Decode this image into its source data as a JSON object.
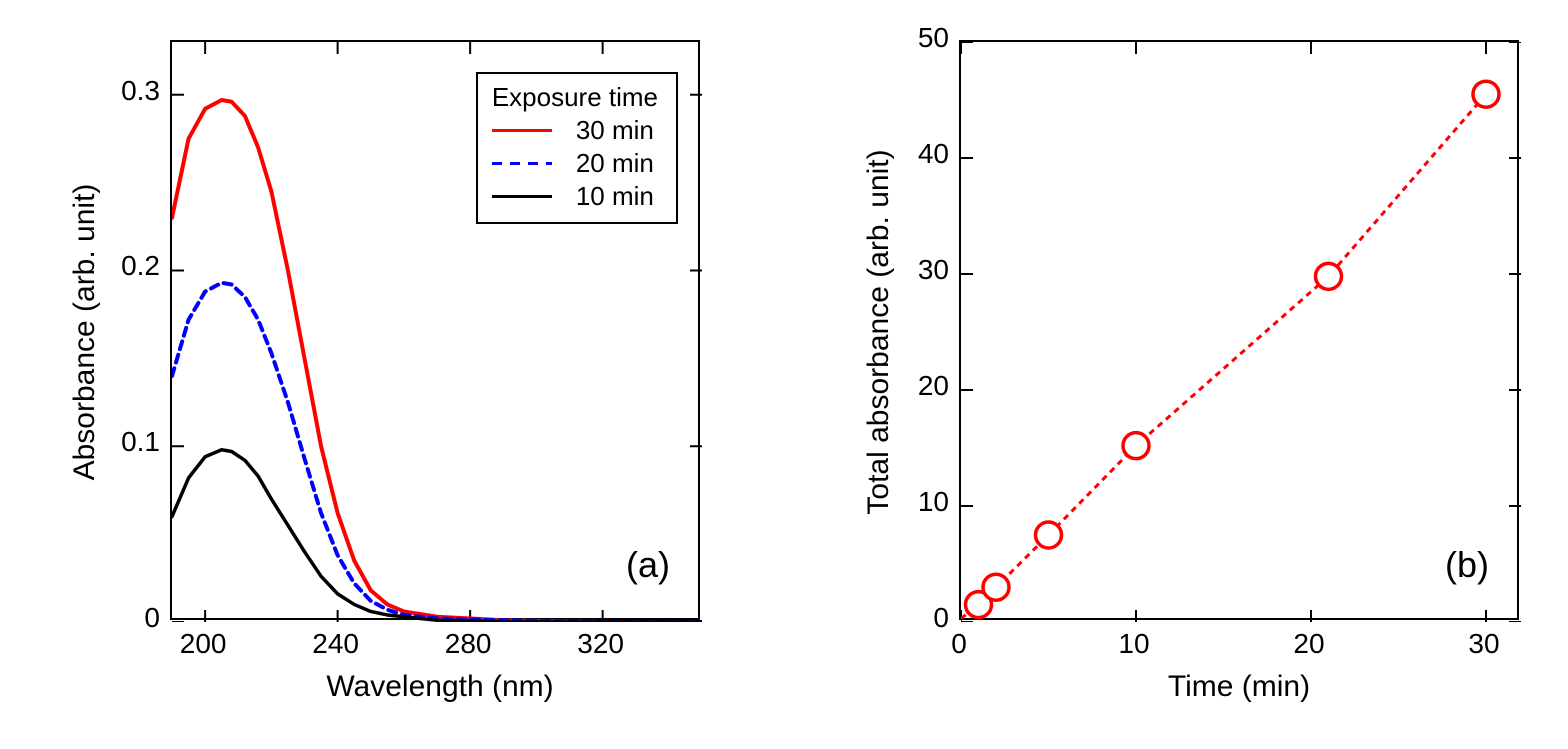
{
  "panel_a": {
    "type": "line",
    "panel_label": "(a)",
    "xlabel": "Wavelength (nm)",
    "ylabel": "Absorbance (arb. unit)",
    "label_fontsize": 30,
    "tick_fontsize": 28,
    "xlim": [
      190,
      350
    ],
    "ylim": [
      0,
      0.33
    ],
    "xticks": [
      200,
      240,
      280,
      320
    ],
    "yticks": [
      0,
      0.1,
      0.2,
      0.3
    ],
    "background_color": "#ffffff",
    "border_color": "#000000",
    "legend": {
      "title": "Exposure time",
      "entries": [
        {
          "label": "30 min",
          "color": "#ff0000",
          "dash": "solid"
        },
        {
          "label": "20 min",
          "color": "#0000ff",
          "dash": "dashed"
        },
        {
          "label": "10 min",
          "color": "#000000",
          "dash": "solid"
        }
      ]
    },
    "series": [
      {
        "name": "30min",
        "color": "#ff0000",
        "dash": "none",
        "width": 4,
        "x": [
          190,
          195,
          200,
          205,
          208,
          212,
          216,
          220,
          225,
          230,
          235,
          240,
          245,
          250,
          255,
          260,
          270,
          290,
          320,
          350
        ],
        "y": [
          0.23,
          0.275,
          0.292,
          0.297,
          0.296,
          0.288,
          0.27,
          0.245,
          0.2,
          0.15,
          0.1,
          0.062,
          0.035,
          0.018,
          0.01,
          0.006,
          0.003,
          0.001,
          0.0,
          0.0
        ]
      },
      {
        "name": "20min",
        "color": "#0000ff",
        "dash": "8,6",
        "width": 4,
        "x": [
          190,
          195,
          200,
          205,
          208,
          212,
          216,
          220,
          225,
          230,
          235,
          240,
          245,
          250,
          255,
          260,
          270,
          290,
          320,
          350
        ],
        "y": [
          0.14,
          0.172,
          0.188,
          0.193,
          0.192,
          0.185,
          0.172,
          0.153,
          0.125,
          0.093,
          0.062,
          0.038,
          0.022,
          0.012,
          0.007,
          0.004,
          0.002,
          0.001,
          0.0,
          0.0
        ]
      },
      {
        "name": "10min",
        "color": "#000000",
        "dash": "none",
        "width": 3.5,
        "x": [
          190,
          195,
          200,
          205,
          208,
          212,
          216,
          220,
          225,
          230,
          235,
          240,
          245,
          250,
          255,
          260,
          270,
          290,
          320,
          350
        ],
        "y": [
          0.06,
          0.082,
          0.094,
          0.098,
          0.097,
          0.092,
          0.083,
          0.07,
          0.055,
          0.04,
          0.026,
          0.016,
          0.01,
          0.006,
          0.004,
          0.003,
          0.001,
          0.0,
          0.0,
          0.0
        ]
      }
    ]
  },
  "panel_b": {
    "type": "scatter-line",
    "panel_label": "(b)",
    "xlabel": "Time (min)",
    "ylabel": "Total absorbance (arb. unit)",
    "label_fontsize": 30,
    "tick_fontsize": 28,
    "xlim": [
      0,
      32
    ],
    "ylim": [
      0,
      50
    ],
    "xticks": [
      0,
      10,
      20,
      30
    ],
    "yticks": [
      0,
      10,
      20,
      30,
      40,
      50
    ],
    "background_color": "#ffffff",
    "border_color": "#000000",
    "marker": {
      "style": "open-circle",
      "color": "#ff0000",
      "size": 13,
      "stroke_width": 3.5
    },
    "line": {
      "color": "#ff0000",
      "dash": "6,5",
      "width": 3
    },
    "points": {
      "x": [
        0,
        1,
        2,
        5,
        10,
        21,
        30
      ],
      "y": [
        0.3,
        1.5,
        3.0,
        7.5,
        15.2,
        29.8,
        45.5
      ]
    }
  }
}
